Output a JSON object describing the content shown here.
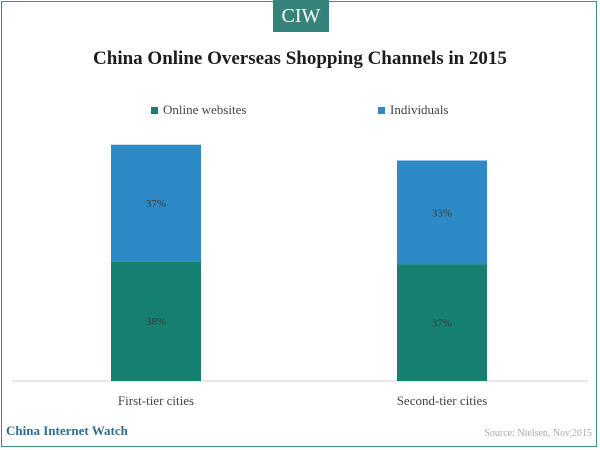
{
  "brand": {
    "logo_text": "CIW",
    "footer_name": "China Internet Watch",
    "source": "Source: Nielsen, Nov,2015"
  },
  "colors": {
    "online": "#157f71",
    "individuals": "#2e8ac6",
    "brand": "#35837b"
  },
  "chart_data": {
    "type": "bar",
    "stacked": true,
    "title": "China Online Overseas Shopping Channels in 2015",
    "categories": [
      "First-tier cities",
      "Second-tier cities"
    ],
    "series": [
      {
        "name": "Online websites",
        "values": [
          38,
          37
        ],
        "labels": [
          "38%",
          "37%"
        ],
        "color": "#157f71"
      },
      {
        "name": "Individuals",
        "values": [
          37,
          33
        ],
        "labels": [
          "37%",
          "33%"
        ],
        "color": "#2e8ac6"
      }
    ],
    "ylim": [
      0,
      100
    ],
    "legend": "top",
    "grid": false
  }
}
